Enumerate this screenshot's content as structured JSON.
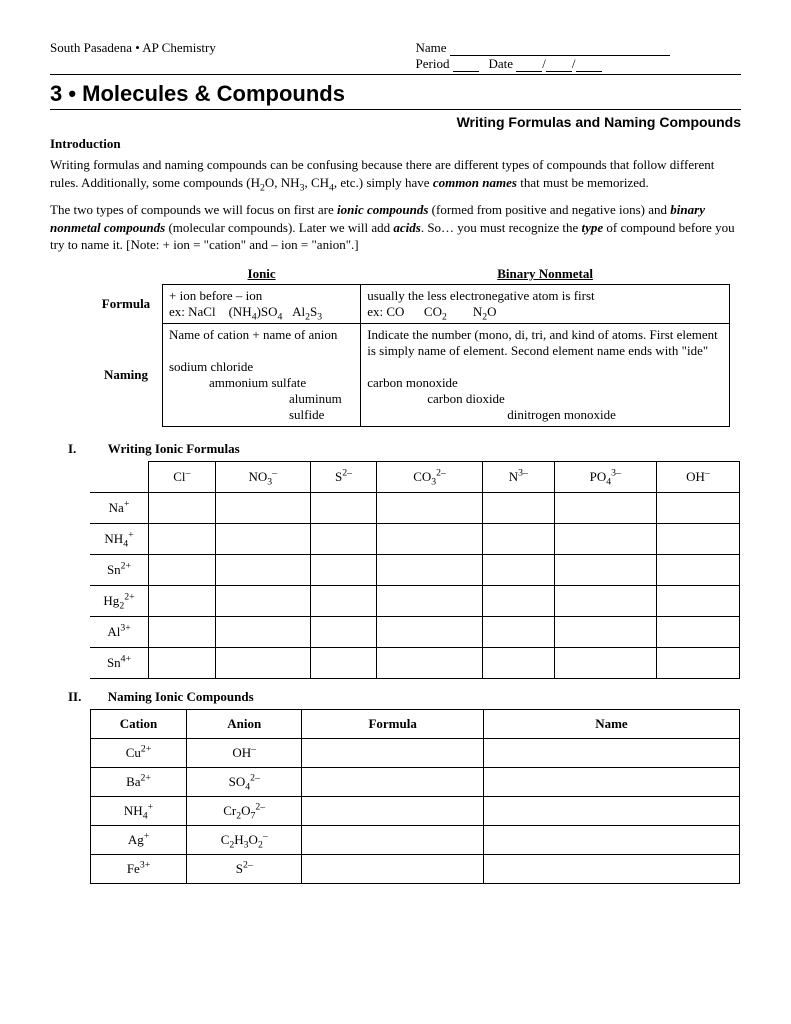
{
  "header": {
    "school_course": "South Pasadena • AP Chemistry",
    "name_label": "Name",
    "period_label": "Period",
    "date_label": "Date"
  },
  "title": "3 • Molecules & Compounds",
  "subtitle": "Writing Formulas and Naming Compounds",
  "intro_head": "Introduction",
  "intro_p1_a": "Writing formulas and naming compounds can be confusing because there are different types of compounds that follow different rules.  Additionally, some compounds (H",
  "intro_p1_b": "O, NH",
  "intro_p1_c": ", CH",
  "intro_p1_d": ", etc.) simply have ",
  "intro_p1_e": "common names",
  "intro_p1_f": " that must be memorized.",
  "intro_p2_a": "The two types of compounds we will focus on first are ",
  "intro_p2_b": "ionic compounds",
  "intro_p2_c": " (formed from positive and negative ions) and ",
  "intro_p2_d": "binary nonmetal compounds",
  "intro_p2_e": " (molecular compounds).  Later we will add ",
  "intro_p2_f": "acids",
  "intro_p2_g": ".  So… you must recognize the ",
  "intro_p2_h": "type",
  "intro_p2_i": " of compound before you try to name it.  [Note: + ion = \"cation\" and – ion = \"anion\".]",
  "rules": {
    "col1_head": "Ionic",
    "col2_head": "Binary Nonmetal",
    "row1_label": "Formula",
    "row2_label": "Naming",
    "ionic_formula_l1": "+ ion before – ion",
    "ionic_formula_l2a": "ex: NaCl",
    "ionic_formula_l2b": "(NH",
    "ionic_formula_l2c": ")SO",
    "ionic_formula_l2d": "Al",
    "ionic_formula_l2e": "S",
    "binary_formula_l1": "usually the less electronegative atom is first",
    "binary_formula_l2a": "ex: CO",
    "binary_formula_l2b": "CO",
    "binary_formula_l2c": "N",
    "binary_formula_l2d": "O",
    "ionic_naming_l1": "Name of cation + name of anion",
    "ionic_naming_l2": "sodium chloride",
    "ionic_naming_l3": "ammonium sulfate",
    "ionic_naming_l4": "aluminum sulfide",
    "binary_naming_l1": "Indicate the number (mono, di, tri, and kind of atoms. First element is simply name of element.  Second element name ends with \"ide\"",
    "binary_naming_l2": "carbon monoxide",
    "binary_naming_l3": "carbon dioxide",
    "binary_naming_l4": "dinitrogen monoxide"
  },
  "section1": {
    "roman": "I.",
    "title": "Writing Ionic Formulas",
    "cols": [
      {
        "base": "Cl",
        "sup": "–"
      },
      {
        "base": "NO",
        "sub": "3",
        "sup": "–"
      },
      {
        "base": "S",
        "sup": "2–"
      },
      {
        "base": "CO",
        "sub": "3",
        "sup": "2–"
      },
      {
        "base": "N",
        "sup": "3–"
      },
      {
        "base": "PO",
        "sub": "4",
        "sup": "3–"
      },
      {
        "base": "OH",
        "sup": "–"
      }
    ],
    "rows": [
      {
        "base": "Na",
        "sup": "+"
      },
      {
        "base": "NH",
        "sub": "4",
        "sup": "+"
      },
      {
        "base": "Sn",
        "sup": "2+"
      },
      {
        "base": "Hg",
        "sub": "2",
        "sup": "2+"
      },
      {
        "base": "Al",
        "sup": "3+"
      },
      {
        "base": "Sn",
        "sup": "4+"
      }
    ]
  },
  "section2": {
    "roman": "II.",
    "title": "Naming Ionic Compounds",
    "headers": [
      "Cation",
      "Anion",
      "Formula",
      "Name"
    ],
    "rows": [
      {
        "cation": {
          "base": "Cu",
          "sup": "2+"
        },
        "anion": {
          "base": "OH",
          "sup": "–"
        }
      },
      {
        "cation": {
          "base": "Ba",
          "sup": "2+"
        },
        "anion": {
          "base": "SO",
          "sub": "4",
          "sup": "2–"
        }
      },
      {
        "cation": {
          "base": "NH",
          "sub": "4",
          "sup": "+"
        },
        "anion": {
          "base": "Cr",
          "sub": "2",
          "mid": "O",
          "sub2": "7",
          "sup": "2–"
        }
      },
      {
        "cation": {
          "base": "Ag",
          "sup": "+"
        },
        "anion": {
          "base": "C",
          "sub": "2",
          "mid": "H",
          "sub2": "3",
          "mid2": "O",
          "sub3": "2",
          "sup": "–"
        }
      },
      {
        "cation": {
          "base": "Fe",
          "sup": "3+"
        },
        "anion": {
          "base": "S",
          "sup": "2–"
        }
      }
    ]
  }
}
